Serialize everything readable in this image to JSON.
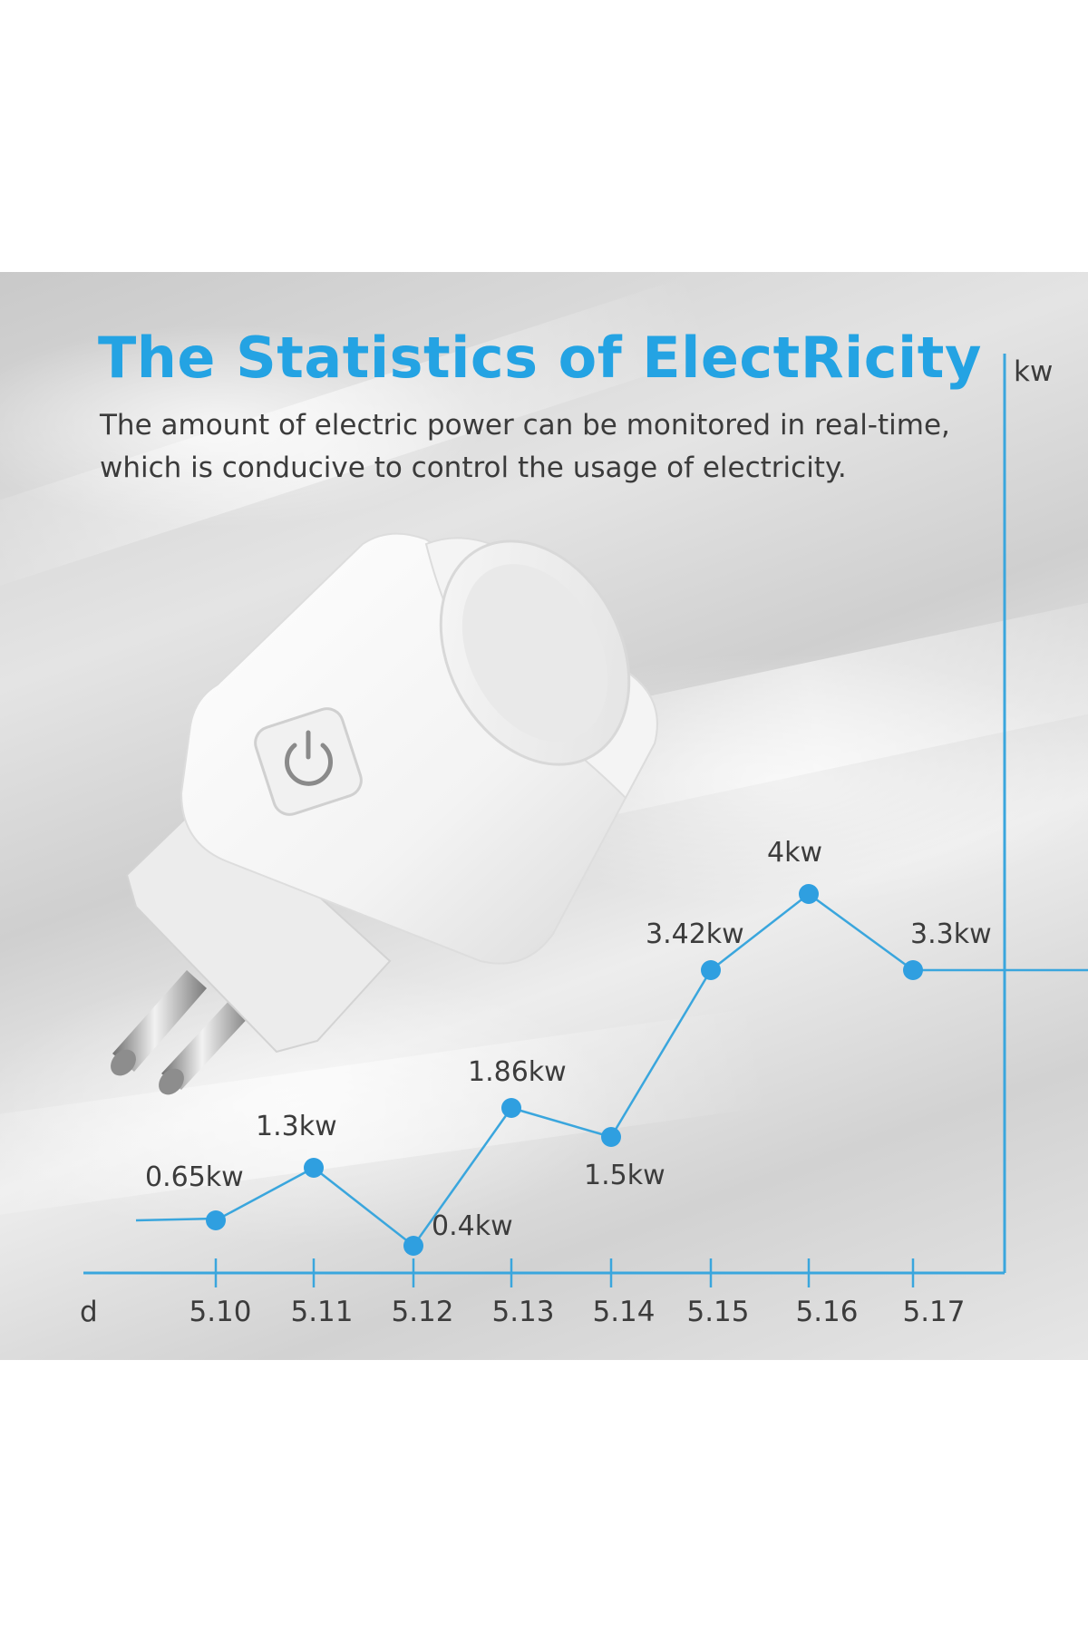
{
  "header": {
    "title": "The Statistics of ElectRicity",
    "subtitle_line1": "The amount of electric power can be monitored in real-time,",
    "subtitle_line2": "which is conducive to control the usage of electricity."
  },
  "colors": {
    "accent": "#24a3e3",
    "line": "#3aa6dd",
    "point": "#2f9fe0",
    "text": "#3c3c3c"
  },
  "device": {
    "icon": "power-icon"
  },
  "chart_data": {
    "type": "line",
    "categories": [
      "5.10",
      "5.11",
      "5.12",
      "5.13",
      "5.14",
      "5.15",
      "5.16",
      "5.17"
    ],
    "series": [
      {
        "values": [
          0.65,
          1.3,
          0.4,
          1.86,
          1.5,
          3.42,
          4,
          3.3
        ],
        "labels": [
          "0.65kw",
          "1.3kw",
          "0.4kw",
          "1.86kw",
          "1.5kw",
          "3.42kw",
          "4kw",
          "3.3kw"
        ]
      }
    ],
    "xlabel": "d",
    "ylabel": "kw",
    "ylim": [
      0,
      4
    ],
    "grid": false,
    "legend": "none"
  }
}
